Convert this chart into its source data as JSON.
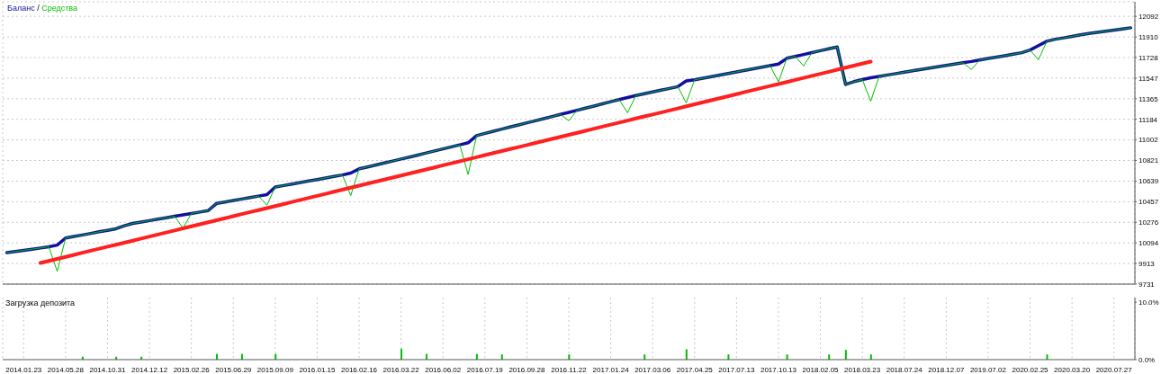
{
  "chart_data": [
    {
      "type": "line",
      "legend": "top left",
      "annotations": [
        "/"
      ],
      "grid": true,
      "tick_labels": "y",
      "categories": [
        null,
        null,
        "2014.01.23",
        null,
        null,
        null,
        null,
        "2014.05.28",
        null,
        null,
        null,
        null,
        "2014.10.31",
        null,
        null,
        null,
        null,
        "2014.12.12",
        null,
        null,
        null,
        null,
        "2015.02.26",
        null,
        null,
        null,
        null,
        "2015.06.29",
        null,
        null,
        null,
        null,
        "2015.09.09",
        null,
        null,
        null,
        null,
        "2016.01.15",
        null,
        null,
        null,
        null,
        "2016.02.16",
        null,
        null,
        null,
        null,
        "2016.03.22",
        null,
        null,
        null,
        null,
        "2016.06.02",
        null,
        null,
        null,
        null,
        "2016.07.19",
        null,
        null,
        null,
        null,
        "2016.09.28",
        null,
        null,
        null,
        null,
        "2016.11.22",
        null,
        null,
        null,
        null,
        "2017.01.24",
        null,
        null,
        null,
        null,
        "2017.03.06",
        null,
        null,
        null,
        null,
        "2017.04.25",
        null,
        null,
        null,
        null,
        "2017.07.13",
        null,
        null,
        null,
        null,
        "2017.10.13",
        null,
        null,
        null,
        null,
        "2018.02.05",
        null,
        null,
        null,
        null,
        "2018.03.23",
        null,
        null,
        null,
        null,
        "2018.07.24",
        null,
        null,
        null,
        null,
        "2018.12.07",
        null,
        null,
        null,
        null,
        "2019.07.02",
        null,
        null,
        null,
        null,
        "2020.02.25",
        null,
        null,
        null,
        null,
        "2020.03.20",
        null,
        null,
        null,
        null,
        "2020.07.27",
        null,
        null
      ],
      "ylim": [
        9731,
        12220
      ],
      "yticks": [
        9731,
        9913,
        10094,
        10276,
        10457,
        10639,
        10821,
        11002,
        11184,
        11365,
        11547,
        11728,
        11910,
        12092
      ],
      "series": [
        {
          "name": "Баланс",
          "color": "#1010a0",
          "values": [
            10008,
            10018,
            10029,
            10039,
            10049,
            10060,
            10075,
            10137,
            10151,
            10164,
            10178,
            10192,
            10205,
            10219,
            10245,
            10266,
            10278,
            10291,
            10304,
            10316,
            10329,
            10341,
            10354,
            10366,
            10379,
            10442,
            10455,
            10468,
            10481,
            10494,
            10507,
            10520,
            10587,
            10600,
            10613,
            10627,
            10640,
            10653,
            10667,
            10680,
            10693,
            10710,
            10747,
            10764,
            10781,
            10799,
            10816,
            10834,
            10851,
            10869,
            10887,
            10905,
            10923,
            10941,
            10959,
            10977,
            11040,
            11060,
            11079,
            11097,
            11116,
            11134,
            11153,
            11171,
            11189,
            11208,
            11227,
            11245,
            11264,
            11283,
            11301,
            11320,
            11339,
            11358,
            11376,
            11393,
            11409,
            11425,
            11441,
            11456,
            11472,
            11522,
            11532,
            11546,
            11560,
            11574,
            11588,
            11602,
            11616,
            11630,
            11643,
            11657,
            11671,
            11722,
            11739,
            11755,
            11772,
            11789,
            11806,
            11822,
            11491,
            11516,
            11534,
            11550,
            11562,
            11575,
            11587,
            11600,
            11612,
            11624,
            11635,
            11647,
            11659,
            11671,
            11683,
            11694,
            11707,
            11720,
            11733,
            11745,
            11758,
            11771,
            11795,
            11834,
            11872,
            11890,
            11902,
            11915,
            11928,
            11940,
            11950,
            11960,
            11971,
            11981,
            11991
          ]
        },
        {
          "name": "Средства",
          "color": "#00c000",
          "values": [
            10008,
            10018,
            10029,
            10039,
            10049,
            10060,
            9843,
            10137,
            10151,
            10164,
            10178,
            10192,
            10205,
            10219,
            10245,
            10266,
            10278,
            10291,
            10304,
            10316,
            10329,
            10224,
            10354,
            10366,
            10379,
            10442,
            10455,
            10468,
            10481,
            10494,
            10507,
            10426,
            10587,
            10600,
            10613,
            10627,
            10640,
            10653,
            10667,
            10680,
            10693,
            10511,
            10747,
            10764,
            10781,
            10799,
            10816,
            10834,
            10851,
            10869,
            10887,
            10905,
            10923,
            10941,
            10959,
            10698,
            11040,
            11060,
            11079,
            11097,
            11116,
            11134,
            11153,
            11171,
            11189,
            11208,
            11227,
            11172,
            11264,
            11283,
            11301,
            11320,
            11339,
            11358,
            11242,
            11393,
            11409,
            11425,
            11441,
            11456,
            11472,
            11328,
            11532,
            11546,
            11560,
            11574,
            11588,
            11602,
            11616,
            11630,
            11643,
            11657,
            11514,
            11722,
            11739,
            11654,
            11772,
            11789,
            11806,
            11822,
            11491,
            11516,
            11534,
            11343,
            11562,
            11575,
            11587,
            11600,
            11612,
            11624,
            11635,
            11647,
            11659,
            11671,
            11683,
            11623,
            11707,
            11720,
            11733,
            11745,
            11758,
            11771,
            11795,
            11709,
            11872,
            11890,
            11902,
            11915,
            11928,
            11940,
            11950,
            11960,
            11971,
            11981,
            11991
          ]
        },
        {
          "type": "line",
          "color": "#ff2020",
          "values": [
            null,
            null,
            null,
            null,
            9917,
            9935,
            9953,
            9971,
            9989,
            10007,
            10025,
            10043,
            10061,
            10078,
            10096,
            10114,
            10132,
            10150,
            10168,
            10186,
            10204,
            10222,
            10240,
            10258,
            10276,
            10294,
            10312,
            10330,
            10348,
            10366,
            10383,
            10401,
            10419,
            10437,
            10455,
            10473,
            10491,
            10509,
            10527,
            10545,
            10563,
            10581,
            10599,
            10617,
            10635,
            10652,
            10670,
            10688,
            10706,
            10724,
            10742,
            10760,
            10778,
            10796,
            10814,
            10832,
            10850,
            10868,
            10886,
            10904,
            10922,
            10939,
            10957,
            10975,
            10993,
            11011,
            11029,
            11047,
            11065,
            11083,
            11101,
            11119,
            11137,
            11155,
            11173,
            11191,
            11209,
            11226,
            11244,
            11262,
            11280,
            11298,
            11316,
            11334,
            11352,
            11370,
            11388,
            11406,
            11424,
            11442,
            11460,
            11478,
            11495,
            11513,
            11531,
            11549,
            11567,
            11585,
            11603,
            11621,
            11639,
            11657,
            11675,
            11693,
            null,
            null,
            null,
            null,
            null,
            null,
            null,
            null,
            null,
            null,
            null,
            null,
            null,
            null,
            null,
            null,
            null,
            null,
            null,
            null,
            null,
            null,
            null,
            null,
            null,
            null,
            null,
            null,
            null,
            null,
            null
          ]
        }
      ]
    },
    {
      "type": "bar",
      "title": "Загрузка депозита",
      "grid": "x",
      "categories": [
        null,
        null,
        "2014.01.23",
        null,
        null,
        null,
        null,
        "2014.05.28",
        null,
        null,
        null,
        null,
        "2014.10.31",
        null,
        null,
        null,
        null,
        "2014.12.12",
        null,
        null,
        null,
        null,
        "2015.02.26",
        null,
        null,
        null,
        null,
        "2015.06.29",
        null,
        null,
        null,
        null,
        "2015.09.09",
        null,
        null,
        null,
        null,
        "2016.01.15",
        null,
        null,
        null,
        null,
        "2016.02.16",
        null,
        null,
        null,
        null,
        "2016.03.22",
        null,
        null,
        null,
        null,
        "2016.06.02",
        null,
        null,
        null,
        null,
        "2016.07.19",
        null,
        null,
        null,
        null,
        "2016.09.28",
        null,
        null,
        null,
        null,
        "2016.11.22",
        null,
        null,
        null,
        null,
        "2017.01.24",
        null,
        null,
        null,
        null,
        "2017.03.06",
        null,
        null,
        null,
        null,
        "2017.04.25",
        null,
        null,
        null,
        null,
        "2017.07.13",
        null,
        null,
        null,
        null,
        "2017.10.13",
        null,
        null,
        null,
        null,
        "2018.02.05",
        null,
        null,
        null,
        null,
        "2018.03.23",
        null,
        null,
        null,
        null,
        "2018.07.24",
        null,
        null,
        null,
        null,
        "2018.12.07",
        null,
        null,
        null,
        null,
        "2019.07.02",
        null,
        null,
        null,
        null,
        "2020.02.25",
        null,
        null,
        null,
        null,
        "2020.03.20",
        null,
        null,
        null,
        null,
        "2020.07.27",
        null,
        null
      ],
      "ylim": [
        0,
        10.8
      ],
      "yticks": [
        {
          "value": 0,
          "label": "0.0%"
        },
        {
          "value": 10,
          "label": "10.0%"
        }
      ],
      "values": [
        null,
        null,
        null,
        null,
        null,
        null,
        null,
        null,
        null,
        0.5,
        null,
        null,
        null,
        0.5,
        null,
        null,
        0.5,
        null,
        null,
        null,
        null,
        null,
        null,
        null,
        null,
        1.0,
        null,
        null,
        1.0,
        null,
        null,
        null,
        1.0,
        null,
        null,
        null,
        null,
        null,
        null,
        null,
        null,
        null,
        null,
        null,
        null,
        null,
        null,
        1.9,
        null,
        null,
        1.0,
        null,
        null,
        null,
        null,
        null,
        1.0,
        null,
        null,
        0.9,
        null,
        null,
        null,
        null,
        null,
        null,
        null,
        0.9,
        null,
        null,
        null,
        null,
        null,
        null,
        null,
        null,
        0.9,
        null,
        null,
        null,
        null,
        1.8,
        null,
        null,
        null,
        null,
        0.9,
        null,
        null,
        null,
        null,
        null,
        null,
        0.9,
        null,
        null,
        null,
        null,
        0.9,
        null,
        1.7,
        null,
        null,
        0.9,
        null,
        null,
        null,
        null,
        null,
        null,
        null,
        null,
        null,
        null,
        null,
        null,
        null,
        null,
        null,
        null,
        null,
        null,
        null,
        null,
        0.9,
        null,
        null,
        null,
        null,
        null,
        null,
        null,
        null,
        null,
        null
      ],
      "color": "#00c000"
    }
  ]
}
